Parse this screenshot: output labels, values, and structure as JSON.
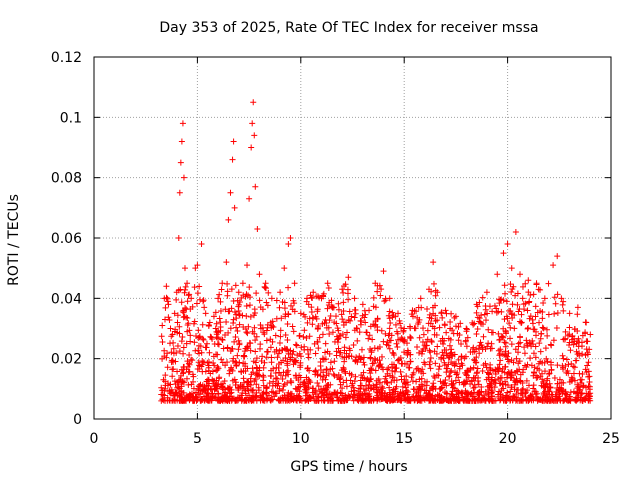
{
  "chart_data": {
    "type": "scatter",
    "title": "Day 353 of 2025, Rate Of TEC Index for receiver mssa",
    "xlabel": "GPS time / hours",
    "ylabel": "ROTI / TECUs",
    "xlim": [
      0,
      25
    ],
    "ylim": [
      0,
      0.12
    ],
    "xticks": [
      "0",
      "5",
      "10",
      "15",
      "20",
      "25"
    ],
    "yticks": [
      "0",
      "0.02",
      "0.04",
      "0.06",
      "0.08",
      "0.1",
      "0.12"
    ],
    "grid": true,
    "marker": "+",
    "color": "#ff0000",
    "series": [
      {
        "values_note": "dense ROTI samples from ~3.2 h to ~24 h",
        "points": [
          [
            3.3,
            0.031
          ],
          [
            3.4,
            0.04
          ],
          [
            3.5,
            0.044
          ],
          [
            3.6,
            0.038
          ],
          [
            3.7,
            0.03
          ],
          [
            3.8,
            0.028
          ],
          [
            3.9,
            0.035
          ],
          [
            4.0,
            0.042
          ],
          [
            4.1,
            0.06
          ],
          [
            4.15,
            0.075
          ],
          [
            4.2,
            0.085
          ],
          [
            4.25,
            0.092
          ],
          [
            4.3,
            0.098
          ],
          [
            4.35,
            0.08
          ],
          [
            4.4,
            0.05
          ],
          [
            4.5,
            0.045
          ],
          [
            4.7,
            0.04
          ],
          [
            4.9,
            0.05
          ],
          [
            5.0,
            0.051
          ],
          [
            5.2,
            0.058
          ],
          [
            5.4,
            0.035
          ],
          [
            5.6,
            0.032
          ],
          [
            5.8,
            0.034
          ],
          [
            6.0,
            0.04
          ],
          [
            6.2,
            0.045
          ],
          [
            6.4,
            0.052
          ],
          [
            6.5,
            0.066
          ],
          [
            6.6,
            0.075
          ],
          [
            6.7,
            0.086
          ],
          [
            6.75,
            0.092
          ],
          [
            6.8,
            0.07
          ],
          [
            7.0,
            0.042
          ],
          [
            7.2,
            0.045
          ],
          [
            7.4,
            0.051
          ],
          [
            7.5,
            0.073
          ],
          [
            7.6,
            0.09
          ],
          [
            7.65,
            0.098
          ],
          [
            7.7,
            0.105
          ],
          [
            7.75,
            0.094
          ],
          [
            7.8,
            0.077
          ],
          [
            7.9,
            0.063
          ],
          [
            8.0,
            0.048
          ],
          [
            8.3,
            0.045
          ],
          [
            8.6,
            0.04
          ],
          [
            9.0,
            0.042
          ],
          [
            9.2,
            0.05
          ],
          [
            9.4,
            0.058
          ],
          [
            9.5,
            0.06
          ],
          [
            9.7,
            0.045
          ],
          [
            10.0,
            0.035
          ],
          [
            10.3,
            0.04
          ],
          [
            10.6,
            0.042
          ],
          [
            11.0,
            0.04
          ],
          [
            11.3,
            0.045
          ],
          [
            11.6,
            0.037
          ],
          [
            12.0,
            0.043
          ],
          [
            12.3,
            0.047
          ],
          [
            12.6,
            0.04
          ],
          [
            13.0,
            0.038
          ],
          [
            13.3,
            0.036
          ],
          [
            13.6,
            0.045
          ],
          [
            14.0,
            0.049
          ],
          [
            14.3,
            0.04
          ],
          [
            14.7,
            0.035
          ],
          [
            15.0,
            0.03
          ],
          [
            15.4,
            0.036
          ],
          [
            15.8,
            0.04
          ],
          [
            16.2,
            0.043
          ],
          [
            16.4,
            0.052
          ],
          [
            16.6,
            0.042
          ],
          [
            17.0,
            0.036
          ],
          [
            17.5,
            0.034
          ],
          [
            18.0,
            0.03
          ],
          [
            18.5,
            0.038
          ],
          [
            19.0,
            0.042
          ],
          [
            19.5,
            0.048
          ],
          [
            19.8,
            0.055
          ],
          [
            20.0,
            0.058
          ],
          [
            20.2,
            0.05
          ],
          [
            20.4,
            0.062
          ],
          [
            20.6,
            0.048
          ],
          [
            21.0,
            0.046
          ],
          [
            21.4,
            0.045
          ],
          [
            21.8,
            0.04
          ],
          [
            22.2,
            0.051
          ],
          [
            22.4,
            0.054
          ],
          [
            22.6,
            0.04
          ],
          [
            23.0,
            0.035
          ],
          [
            23.4,
            0.037
          ],
          [
            23.8,
            0.032
          ],
          [
            24.0,
            0.028
          ]
        ]
      }
    ]
  }
}
